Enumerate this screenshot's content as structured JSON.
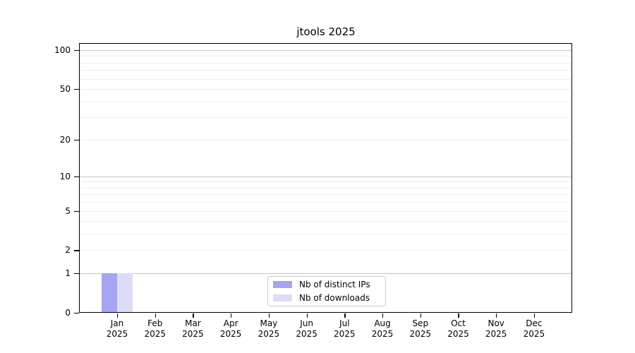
{
  "chart_data": {
    "type": "bar",
    "title": "jtools 2025",
    "categories": [
      "Jan",
      "Feb",
      "Mar",
      "Apr",
      "May",
      "Jun",
      "Jul",
      "Aug",
      "Sep",
      "Oct",
      "Nov",
      "Dec"
    ],
    "category_year": "2025",
    "series": [
      {
        "name": "Nb of distinct IPs",
        "color": "#a5a5f2",
        "values": [
          1,
          0,
          0,
          0,
          0,
          0,
          0,
          0,
          0,
          0,
          0,
          0
        ]
      },
      {
        "name": "Nb of downloads",
        "color": "#dcdcf8",
        "values": [
          1,
          0,
          0,
          0,
          0,
          0,
          0,
          0,
          0,
          0,
          0,
          0
        ]
      }
    ],
    "yscale": "log1p",
    "ylim": [
      0,
      113
    ],
    "yticks": [
      0,
      1,
      2,
      5,
      10,
      20,
      50,
      100
    ],
    "major_gridlines": [
      1,
      10,
      100
    ],
    "minor_gridlines": [
      2,
      3,
      4,
      5,
      6,
      7,
      8,
      9,
      20,
      30,
      40,
      50,
      60,
      70,
      80,
      90
    ],
    "grid": true,
    "legend_position": "bottom-center"
  },
  "style": {
    "background": "#ffffff",
    "text_color": "#000000",
    "axis_color": "#000000",
    "major_grid_color": "#c4c4c4",
    "minor_grid_color": "#ededed",
    "legend_border_color": "#c9c9c9",
    "bar_color_distinct_ips": "#a5a5f2",
    "bar_color_downloads": "#dcdcf8"
  }
}
